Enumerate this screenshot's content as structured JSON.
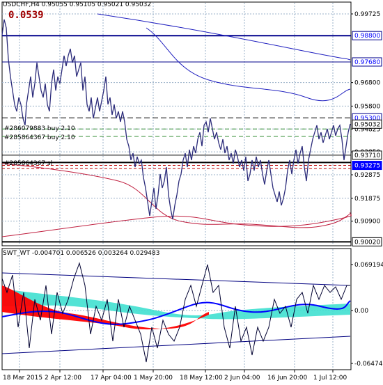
{
  "header": {
    "symbol_line": "USDCHF,H4  0.95055 0.95105 0.95021 0.95032",
    "profit": "0.0539"
  },
  "colors": {
    "background": "#ffffff",
    "price_line": "#2b2b7a",
    "ma_long": "#1f1fbf",
    "ma_red": "#c02040",
    "hline_blue": "#00008b",
    "order_green": "#2e8b2e",
    "order_black": "#000000",
    "sl_red": "#c00000",
    "grid": "#9ab0c8",
    "cyan_fill": "#40e0d0",
    "red_fill": "#ff0000",
    "label_blue": "#0000ff"
  },
  "price_axis": {
    "ticks": [
      "0.99725",
      "0.96800",
      "0.95800",
      "0.94825",
      "0.93850",
      "0.92875",
      "0.91875",
      "0.90900"
    ],
    "levels": [
      {
        "value": "0.98800",
        "style": "blue-box"
      },
      {
        "value": "0.97680",
        "style": "blue-box"
      },
      {
        "value": "0.95300",
        "style": "blue-box"
      },
      {
        "value": "0.95032",
        "style": "black-box"
      },
      {
        "value": "0.93710",
        "style": "black-box"
      },
      {
        "value": "0.93275",
        "style": "blue-fill"
      },
      {
        "value": "0.90020",
        "style": "black-box"
      }
    ]
  },
  "orders": [
    {
      "label": "#286079883 buy 2.10"
    },
    {
      "label": "#285864367 buy 2.10"
    },
    {
      "label": "#285864367 sl"
    }
  ],
  "indicator": {
    "title": "SWT_WT -0.004701 0.006526 0.003264 0.029483",
    "ticks": [
      "0.069194",
      "0.00",
      "-0.064745"
    ]
  },
  "time_axis": {
    "labels": [
      "18 Mar 2015",
      "2 Apr 12:00",
      "17 Apr 04:00",
      "1 May 20:00",
      "18 May 12:00",
      "2 Jun 04:00",
      "16 Jun 20:00",
      "1 Jul 12:00"
    ]
  }
}
